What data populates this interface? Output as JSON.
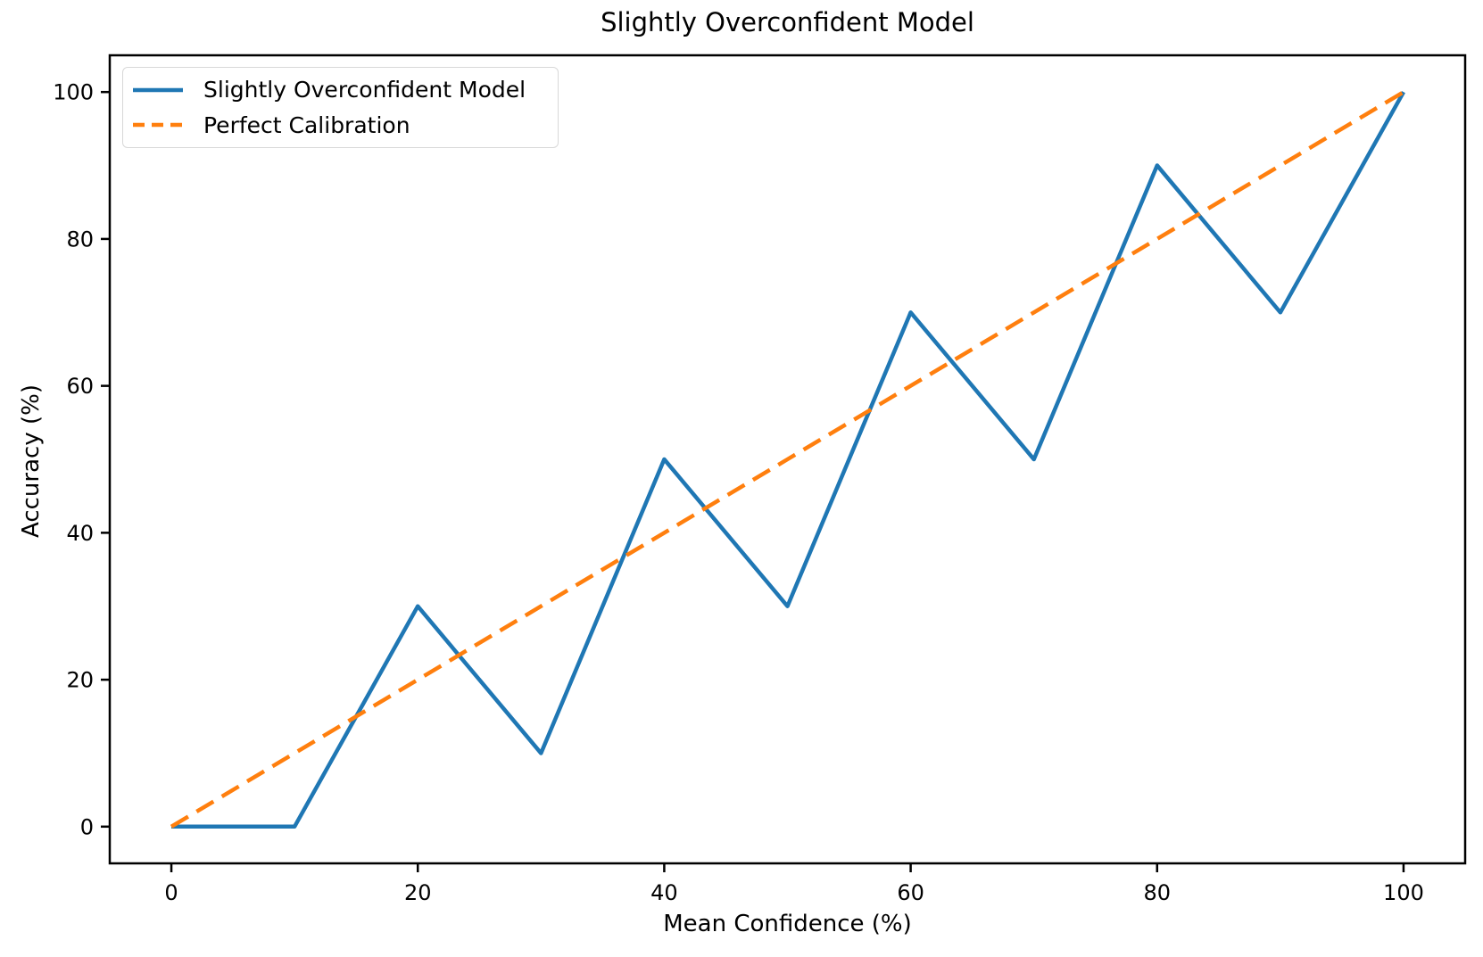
{
  "chart_data": {
    "type": "line",
    "title": "Slightly Overconfident Model",
    "xlabel": "Mean Confidence (%)",
    "ylabel": "Accuracy (%)",
    "xlim": [
      0,
      100
    ],
    "ylim": [
      0,
      100
    ],
    "x_ticks": [
      0,
      20,
      40,
      60,
      80,
      100
    ],
    "y_ticks": [
      0,
      20,
      40,
      60,
      80,
      100
    ],
    "grid": false,
    "legend_position": "upper left",
    "x": [
      0,
      10,
      20,
      30,
      40,
      50,
      60,
      70,
      80,
      90,
      100
    ],
    "series": [
      {
        "name": "Slightly Overconfident Model",
        "color": "#1f77b4",
        "style": "solid",
        "values": [
          0,
          0,
          30,
          10,
          50,
          30,
          70,
          50,
          90,
          70,
          100
        ]
      },
      {
        "name": "Perfect Calibration",
        "color": "#ff7f0e",
        "style": "dashed",
        "values": [
          0,
          10,
          20,
          30,
          40,
          50,
          60,
          70,
          80,
          90,
          100
        ]
      }
    ]
  }
}
